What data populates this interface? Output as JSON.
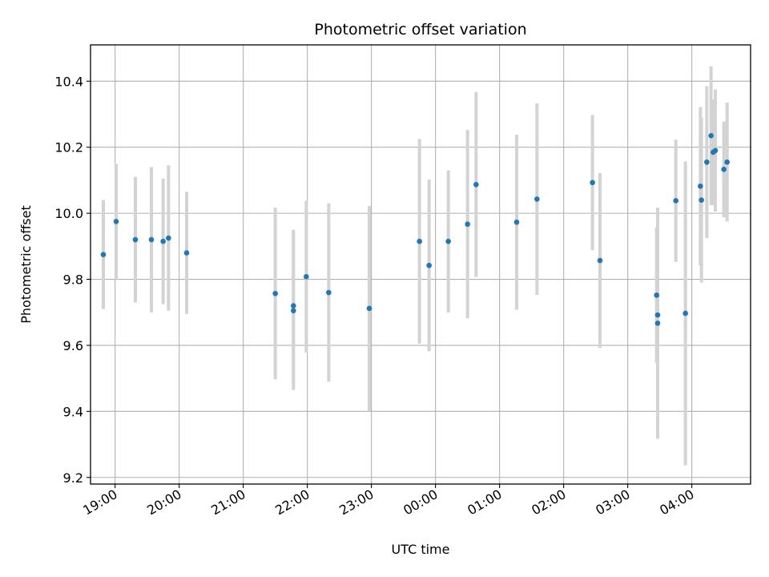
{
  "chart_data": {
    "type": "scatter",
    "title": "Photometric offset variation",
    "xlabel": "UTC time",
    "ylabel": "Photometric offset",
    "x_tick_labels": [
      "19:00",
      "20:00",
      "21:00",
      "22:00",
      "23:00",
      "00:00",
      "01:00",
      "02:00",
      "03:00",
      "04:00"
    ],
    "y_tick_labels": [
      "9.2",
      "9.4",
      "9.6",
      "9.8",
      "10.0",
      "10.2",
      "10.4"
    ],
    "y_ticks": [
      9.2,
      9.4,
      9.6,
      9.8,
      10.0,
      10.2,
      10.4
    ],
    "xlim": [
      "18:37",
      "04:55"
    ],
    "ylim": [
      9.18,
      10.51
    ],
    "grid": true,
    "marker_color": "#1f77b4",
    "errorbar_color": "#d3d3d3",
    "points": [
      {
        "t": "18:49",
        "y": 9.875,
        "err": 0.165
      },
      {
        "t": "19:01",
        "y": 9.975,
        "err": 0.175
      },
      {
        "t": "19:19",
        "y": 9.92,
        "err": 0.19
      },
      {
        "t": "19:34",
        "y": 9.92,
        "err": 0.22
      },
      {
        "t": "19:45",
        "y": 9.915,
        "err": 0.19
      },
      {
        "t": "19:50",
        "y": 9.925,
        "err": 0.22
      },
      {
        "t": "20:07",
        "y": 9.88,
        "err": 0.185
      },
      {
        "t": "21:30",
        "y": 9.757,
        "err": 0.26
      },
      {
        "t": "21:47",
        "y": 9.72,
        "err": 0.23
      },
      {
        "t": "21:47",
        "y": 9.705,
        "err": 0.24
      },
      {
        "t": "21:59",
        "y": 9.808,
        "err": 0.23
      },
      {
        "t": "22:20",
        "y": 9.76,
        "err": 0.27
      },
      {
        "t": "22:58",
        "y": 9.712,
        "err": 0.31
      },
      {
        "t": "23:45",
        "y": 9.915,
        "err": 0.31
      },
      {
        "t": "23:54",
        "y": 9.842,
        "err": 0.26
      },
      {
        "t": "00:12",
        "y": 9.915,
        "err": 0.215
      },
      {
        "t": "00:30",
        "y": 9.967,
        "err": 0.285
      },
      {
        "t": "00:38",
        "y": 10.087,
        "err": 0.28
      },
      {
        "t": "01:16",
        "y": 9.973,
        "err": 0.265
      },
      {
        "t": "01:35",
        "y": 10.043,
        "err": 0.29
      },
      {
        "t": "02:27",
        "y": 10.093,
        "err": 0.205
      },
      {
        "t": "02:34",
        "y": 9.857,
        "err": 0.265
      },
      {
        "t": "03:27",
        "y": 9.752,
        "err": 0.205
      },
      {
        "t": "03:28",
        "y": 9.692,
        "err": 0.28
      },
      {
        "t": "03:28",
        "y": 9.667,
        "err": 0.35
      },
      {
        "t": "03:45",
        "y": 10.038,
        "err": 0.185
      },
      {
        "t": "03:54",
        "y": 9.697,
        "err": 0.46
      },
      {
        "t": "04:08",
        "y": 10.082,
        "err": 0.24
      },
      {
        "t": "04:09",
        "y": 10.04,
        "err": 0.25
      },
      {
        "t": "04:14",
        "y": 10.155,
        "err": 0.23
      },
      {
        "t": "04:18",
        "y": 10.235,
        "err": 0.21
      },
      {
        "t": "04:20",
        "y": 10.185,
        "err": 0.16
      },
      {
        "t": "04:22",
        "y": 10.19,
        "err": 0.185
      },
      {
        "t": "04:30",
        "y": 10.133,
        "err": 0.145
      },
      {
        "t": "04:33",
        "y": 10.155,
        "err": 0.18
      }
    ]
  }
}
